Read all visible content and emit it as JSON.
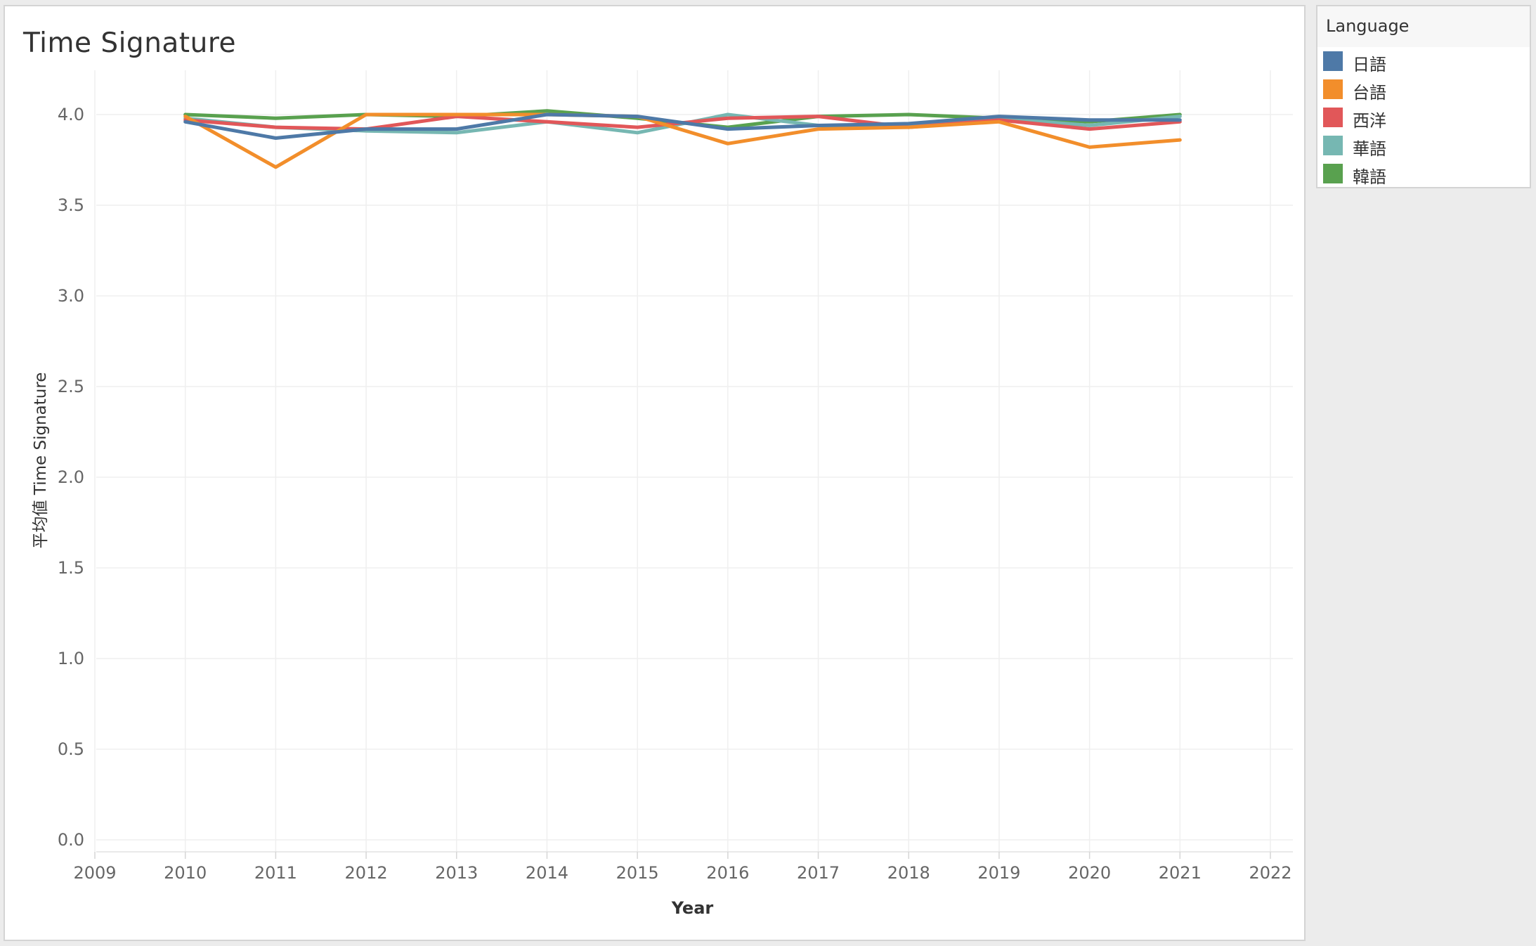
{
  "chart_data": {
    "type": "line",
    "title": "Time Signature",
    "xlabel": "Year",
    "ylabel": "平均値 Time Signature",
    "xlim": [
      2009,
      2022
    ],
    "ylim": [
      0,
      4.2
    ],
    "x_ticks": [
      "2009",
      "2010",
      "2011",
      "2012",
      "2013",
      "2014",
      "2015",
      "2016",
      "2017",
      "2018",
      "2019",
      "2020",
      "2021",
      "2022"
    ],
    "y_ticks": [
      "0.0",
      "0.5",
      "1.0",
      "1.5",
      "2.0",
      "2.5",
      "3.0",
      "3.5",
      "4.0"
    ],
    "grid": true,
    "legend_title": "Language",
    "legend_position": "right",
    "x": [
      2010,
      2011,
      2012,
      2013,
      2014,
      2015,
      2016,
      2017,
      2018,
      2019,
      2020,
      2021
    ],
    "series": [
      {
        "name": "日語",
        "color": "#4e79a7",
        "values": [
          3.96,
          3.87,
          3.92,
          3.92,
          4.0,
          3.99,
          3.92,
          3.94,
          3.95,
          3.99,
          3.97,
          3.97
        ]
      },
      {
        "name": "台語",
        "color": "#f28e2b",
        "values": [
          3.99,
          3.71,
          4.0,
          4.0,
          4.0,
          3.99,
          3.84,
          3.92,
          3.93,
          3.96,
          3.82,
          3.86
        ]
      },
      {
        "name": "西洋",
        "color": "#e15759",
        "values": [
          3.97,
          3.93,
          3.92,
          3.99,
          3.96,
          3.93,
          3.98,
          3.99,
          3.93,
          3.97,
          3.92,
          3.96
        ]
      },
      {
        "name": "華語",
        "color": "#76b7b2",
        "values": [
          3.98,
          3.93,
          3.91,
          3.9,
          3.96,
          3.9,
          4.0,
          3.94,
          3.94,
          3.98,
          3.94,
          3.99
        ]
      },
      {
        "name": "韓語",
        "color": "#59a14f",
        "values": [
          4.0,
          3.98,
          4.0,
          3.99,
          4.02,
          3.98,
          3.93,
          3.99,
          4.0,
          3.98,
          3.96,
          4.0
        ]
      }
    ]
  }
}
